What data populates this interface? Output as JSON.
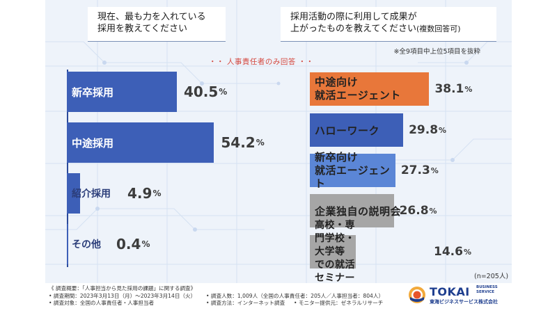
{
  "question_left": [
    "現在、最も力を入れている",
    "採用を教えてください"
  ],
  "question_right_line1": "採用活動の際に利用して成果が",
  "question_right_line2_main": "上がったものを教えてください",
  "question_right_line2_small": "(複数回答可)",
  "sub_note": "※全9項目中上位5項目を抜粋",
  "respondent_note": "・・ 人事責任者のみ回答 ・・",
  "sample_note": "(n=205人)",
  "pct_sign": "%",
  "colors": {
    "primary": "#3d5fb7",
    "highlight": "#e8773a",
    "light_blue": "#5b86d6",
    "gray": "#a6a6a6"
  },
  "chart_data": [
    {
      "type": "bar",
      "orientation": "horizontal",
      "categories": [
        "新卒採用",
        "中途採用",
        "紹介採用",
        "その他"
      ],
      "values": [
        40.5,
        54.2,
        4.9,
        0.4
      ],
      "unit": "%"
    },
    {
      "type": "bar",
      "orientation": "horizontal",
      "categories": [
        "中途向け\n就活エージェント",
        "ハローワーク",
        "新卒向け\n就活エージェント",
        "企業独自の説明会",
        "高校・専門学校・大学等\nでの就活セミナー"
      ],
      "values": [
        38.1,
        29.8,
        27.3,
        26.8,
        14.6
      ],
      "unit": "%",
      "bar_colors": [
        "#e8773a",
        "#3d5fb7",
        "#5b86d6",
        "#a6a6a6",
        "#a6a6a6"
      ]
    }
  ],
  "footer": {
    "title": "《 調査概要：「人事担当から見た採用の課題」に関する調査》",
    "period": "• 調査期間：2023年3月13日（月）〜2023年3月14日（火）",
    "people": "• 調査人数：1,009人（全国の人事責任者：205人／人事担当者：804人）",
    "target": "• 調査対象：全国の人事責任者・人事担当者",
    "method": "• 調査方法：インターネット調査",
    "monitor": "• モニター提供元：ゼネラルリサーチ"
  },
  "logo": {
    "name": "TOKAI",
    "tagline": "BUSINESS\nSERVICE",
    "japanese": "東海ビジネスサービス株式会社"
  }
}
